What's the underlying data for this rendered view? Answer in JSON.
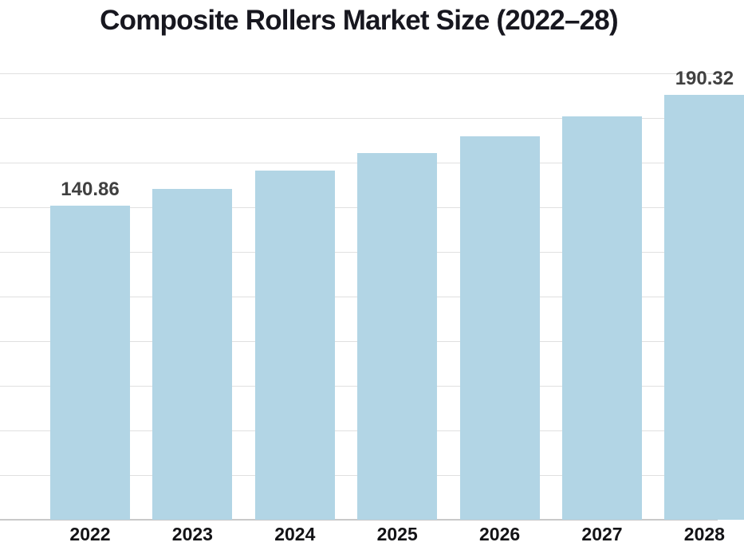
{
  "title": "Composite Rollers Market Size (2022–28)",
  "chart_data": {
    "type": "bar",
    "title": "Composite Rollers Market Size (2022–28)",
    "categories": [
      "2022",
      "2023",
      "2024",
      "2025",
      "2026",
      "2027",
      "2028"
    ],
    "values": [
      140.86,
      148.1,
      156.5,
      164.2,
      171.9,
      180.7,
      190.32
    ],
    "data_labels": [
      "140.86",
      "",
      "",
      "",
      "",
      "",
      "190.32"
    ],
    "xlabel": "",
    "ylabel": "",
    "ylim": [
      0,
      200
    ],
    "gridline_step": 20,
    "grid": true,
    "legend": false,
    "y_tick_labels_visible": false,
    "bar_color": "#b2d5e5"
  },
  "colors": {
    "background": "#ffffff",
    "bar": "#b2d5e5",
    "gridline": "#e0e0e0",
    "axis_line": "#c9c9c9",
    "title_text": "#17171f",
    "value_label_text": "#404040",
    "tick_label_text": "#131316"
  }
}
